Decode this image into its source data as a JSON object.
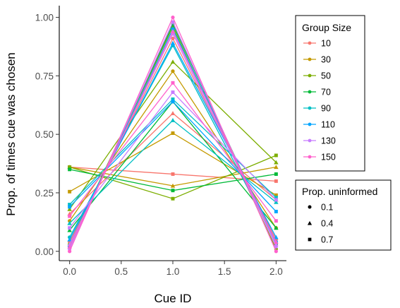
{
  "chart_data": {
    "type": "line",
    "title": "",
    "xlabel": "Cue ID",
    "ylabel": "Prop. of times cue was chosen",
    "x": [
      0,
      1,
      2
    ],
    "xticks": [
      "0.0",
      "0.5",
      "1.0",
      "1.5",
      "2.0"
    ],
    "xtick_values": [
      0,
      0.5,
      1,
      1.5,
      2
    ],
    "yticks": [
      "0.00",
      "0.25",
      "0.50",
      "0.75",
      "1.00"
    ],
    "ytick_values": [
      0,
      0.25,
      0.5,
      0.75,
      1
    ],
    "xlim": [
      -0.1,
      2.1
    ],
    "ylim": [
      -0.04,
      1.05
    ],
    "grid": false,
    "color_legend": {
      "title": "Group Size",
      "placement": "right",
      "entries": [
        {
          "name": "10",
          "color": "#F8766D"
        },
        {
          "name": "30",
          "color": "#C49A00"
        },
        {
          "name": "50",
          "color": "#7CAE00"
        },
        {
          "name": "70",
          "color": "#00BA38"
        },
        {
          "name": "90",
          "color": "#00BFC4"
        },
        {
          "name": "110",
          "color": "#00A5FF"
        },
        {
          "name": "130",
          "color": "#C77CFF"
        },
        {
          "name": "150",
          "color": "#FF61CC"
        }
      ]
    },
    "shape_legend": {
      "title": "Prop. uninformed",
      "placement": "right",
      "entries": [
        {
          "name": "0.1",
          "shape": "circle"
        },
        {
          "name": "0.4",
          "shape": "triangle"
        },
        {
          "name": "0.7",
          "shape": "square"
        }
      ]
    },
    "series": [
      {
        "group_size": "10",
        "prop_uninformed": "0.1",
        "values": [
          0.04,
          0.91,
          0.05
        ]
      },
      {
        "group_size": "10",
        "prop_uninformed": "0.4",
        "values": [
          0.16,
          0.59,
          0.22
        ]
      },
      {
        "group_size": "10",
        "prop_uninformed": "0.7",
        "values": [
          0.36,
          0.33,
          0.3
        ]
      },
      {
        "group_size": "30",
        "prop_uninformed": "0.1",
        "values": [
          0.13,
          0.77,
          0.1
        ]
      },
      {
        "group_size": "30",
        "prop_uninformed": "0.4",
        "values": [
          0.36,
          0.28,
          0.36
        ]
      },
      {
        "group_size": "30",
        "prop_uninformed": "0.7",
        "values": [
          0.255,
          0.505,
          0.24
        ]
      },
      {
        "group_size": "50",
        "prop_uninformed": "0.1",
        "values": [
          0.03,
          0.96,
          0.01
        ]
      },
      {
        "group_size": "50",
        "prop_uninformed": "0.4",
        "values": [
          0.18,
          0.81,
          0.38
        ]
      },
      {
        "group_size": "50",
        "prop_uninformed": "0.7",
        "values": [
          0.36,
          0.225,
          0.41
        ]
      },
      {
        "group_size": "70",
        "prop_uninformed": "0.1",
        "values": [
          0.02,
          0.97,
          0.03
        ]
      },
      {
        "group_size": "70",
        "prop_uninformed": "0.4",
        "values": [
          0.09,
          0.64,
          0.1
        ]
      },
      {
        "group_size": "70",
        "prop_uninformed": "0.7",
        "values": [
          0.35,
          0.26,
          0.33
        ]
      },
      {
        "group_size": "90",
        "prop_uninformed": "0.1",
        "values": [
          0.06,
          0.88,
          0.04
        ]
      },
      {
        "group_size": "90",
        "prop_uninformed": "0.4",
        "values": [
          0.12,
          0.56,
          0.21
        ]
      },
      {
        "group_size": "90",
        "prop_uninformed": "0.7",
        "values": [
          0.2,
          0.65,
          0.23
        ]
      },
      {
        "group_size": "110",
        "prop_uninformed": "0.1",
        "values": [
          0.02,
          0.95,
          0.04
        ]
      },
      {
        "group_size": "110",
        "prop_uninformed": "0.4",
        "values": [
          0.05,
          0.89,
          0.06
        ]
      },
      {
        "group_size": "110",
        "prop_uninformed": "0.7",
        "values": [
          0.19,
          0.64,
          0.17
        ]
      },
      {
        "group_size": "130",
        "prop_uninformed": "0.1",
        "values": [
          0.01,
          0.98,
          0.02
        ]
      },
      {
        "group_size": "130",
        "prop_uninformed": "0.4",
        "values": [
          0.03,
          0.93,
          0.03
        ]
      },
      {
        "group_size": "130",
        "prop_uninformed": "0.7",
        "values": [
          0.1,
          0.68,
          0.22
        ]
      },
      {
        "group_size": "150",
        "prop_uninformed": "0.1",
        "values": [
          0.0,
          1.0,
          0.0
        ]
      },
      {
        "group_size": "150",
        "prop_uninformed": "0.4",
        "values": [
          0.02,
          0.94,
          0.04
        ]
      },
      {
        "group_size": "150",
        "prop_uninformed": "0.7",
        "values": [
          0.15,
          0.72,
          0.13
        ]
      }
    ]
  }
}
